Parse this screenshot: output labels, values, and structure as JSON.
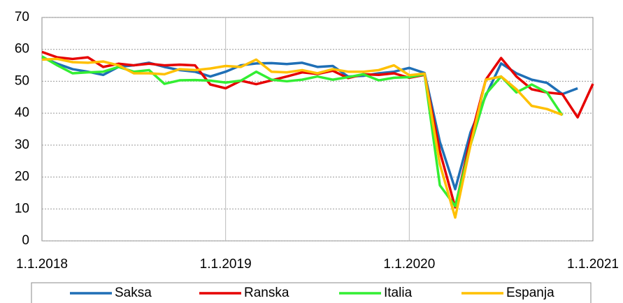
{
  "chart_data": {
    "type": "line",
    "categories": [
      "1.1.2018",
      null,
      null,
      null,
      null,
      null,
      null,
      null,
      null,
      null,
      null,
      null,
      "1.1.2019",
      null,
      null,
      null,
      null,
      null,
      null,
      null,
      null,
      null,
      null,
      null,
      "1.1.2020",
      null,
      null,
      null,
      null,
      null,
      null,
      null,
      null,
      null,
      null,
      null,
      "1.1.2021"
    ],
    "ylim": [
      0,
      70
    ],
    "yticks": [
      0,
      10,
      20,
      30,
      40,
      50,
      60,
      70
    ],
    "grid": true,
    "legend": "bottom",
    "series": [
      {
        "name": "Saksa",
        "color": "#1f6fb6",
        "values": [
          57.5,
          55.5,
          53.8,
          53,
          52,
          54.5,
          55,
          55.8,
          54.5,
          53.5,
          53,
          51.5,
          53,
          55,
          55.6,
          55.7,
          55.4,
          55.8,
          54.5,
          54.8,
          51.5,
          51.7,
          52.5,
          53,
          54.2,
          52.6,
          31,
          16.2,
          34,
          45.5,
          55.6,
          52.5,
          50.5,
          49.5,
          46,
          47.8,
          null
        ]
      },
      {
        "name": "Ranska",
        "color": "#e60000",
        "values": [
          59.2,
          57.5,
          57,
          57.5,
          54.5,
          55.5,
          55,
          55.5,
          55,
          55.2,
          55,
          49,
          47.8,
          50.2,
          49.1,
          50.3,
          51.5,
          52.8,
          52.3,
          53.3,
          51,
          52.2,
          52,
          52.5,
          51.1,
          52,
          28,
          10.5,
          32,
          50.5,
          57.3,
          51.5,
          47.5,
          46.5,
          46,
          38.7,
          49.2
        ]
      },
      {
        "name": "Italia",
        "color": "#33ee33",
        "values": [
          57.8,
          55,
          52.5,
          52.8,
          53,
          54.5,
          53,
          53.5,
          49.2,
          50.3,
          50.4,
          50.2,
          49.6,
          50.2,
          53,
          50.5,
          50,
          50.5,
          51.5,
          50.5,
          51.3,
          52.2,
          50.3,
          51.1,
          51.3,
          52.2,
          17.4,
          10.9,
          30,
          46,
          51.5,
          46.5,
          49,
          46.5,
          39.3,
          null,
          null
        ]
      },
      {
        "name": "Espanja",
        "color": "#ffc000",
        "values": [
          56.8,
          57,
          56,
          55.8,
          56.2,
          55,
          52.5,
          52.5,
          52.2,
          53.8,
          53.5,
          54,
          54.8,
          54.5,
          56.8,
          53,
          52.8,
          53.5,
          52.5,
          53.8,
          53,
          53,
          53.5,
          55,
          51.9,
          52.4,
          24,
          7.3,
          30,
          50.5,
          51.5,
          47.5,
          42.3,
          41.3,
          39.5,
          null,
          null
        ]
      }
    ]
  }
}
